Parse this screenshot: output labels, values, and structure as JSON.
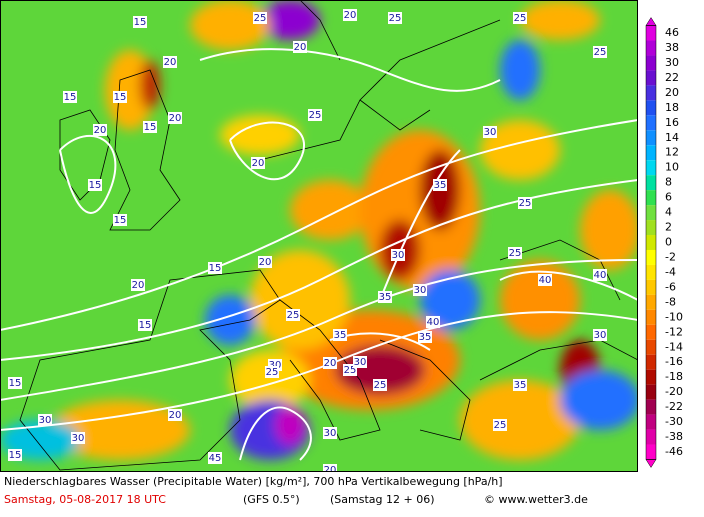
{
  "caption": {
    "line1": "Niederschlagbares Wasser (Precipitable Water) [kg/m²], 700 hPa Vertikalbewegung [hPa/h]",
    "date": "Samstag, 05-08-2017  18 UTC",
    "model": "(GFS 0.5°)",
    "run": "(Samstag 12 + 06)",
    "source": "© www.wetter3.de"
  },
  "colorbar": {
    "labels": [
      46,
      38,
      30,
      22,
      20,
      18,
      16,
      14,
      12,
      10,
      8,
      6,
      4,
      2,
      0,
      -2,
      -4,
      -6,
      -8,
      -10,
      -12,
      -14,
      -16,
      -18,
      -20,
      -22,
      -30,
      -38,
      -46
    ],
    "colors": [
      "#e000e0",
      "#b000d8",
      "#8c00d0",
      "#6a10d0",
      "#4830e0",
      "#2050f0",
      "#2070ff",
      "#1090ff",
      "#00b4ff",
      "#00d8f0",
      "#00e0a0",
      "#30e050",
      "#70e040",
      "#a0e020",
      "#d0e800",
      "#ffff00",
      "#ffe400",
      "#ffc800",
      "#ffa800",
      "#ff8800",
      "#ff6800",
      "#e84800",
      "#d02800",
      "#b00a00",
      "#980010",
      "#a00050",
      "#c00080",
      "#e000a8",
      "#ff00c8"
    ]
  },
  "contour_labels": [
    15,
    20,
    25,
    20,
    25,
    25,
    20,
    15,
    15,
    20,
    15,
    20,
    20,
    15,
    15,
    25,
    30,
    35,
    30,
    25,
    15,
    20,
    15,
    20,
    25,
    35,
    30,
    40,
    35,
    25,
    30,
    20,
    25,
    30,
    15,
    35,
    40,
    25,
    45,
    30,
    25,
    20,
    30,
    35,
    40,
    30,
    25,
    20,
    15,
    30,
    25
  ]
}
